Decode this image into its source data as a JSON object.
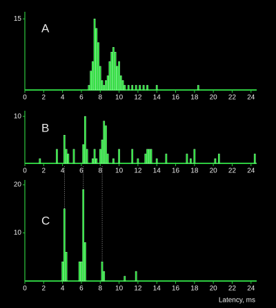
{
  "chart_data": [
    {
      "type": "bar",
      "title": "A",
      "color": "#22dd33",
      "x": [
        6.8,
        7.0,
        7.2,
        7.4,
        7.6,
        7.8,
        8.0,
        8.2,
        8.4,
        8.6,
        8.8,
        9.0,
        9.2,
        9.4,
        9.6,
        9.8,
        10.0,
        10.2,
        10.4,
        10.6,
        11.0,
        11.4,
        11.8,
        12.2,
        12.6,
        13.0,
        14.0,
        18.4
      ],
      "values": [
        1,
        4,
        6,
        15,
        13,
        10,
        5,
        2,
        1,
        2,
        3,
        6,
        8,
        9,
        8,
        5,
        6,
        3,
        2,
        1,
        1,
        1,
        1,
        1,
        1,
        1,
        1,
        1
      ],
      "xlim": [
        0,
        24.6
      ],
      "xticks": [
        0,
        2,
        4,
        6,
        8,
        10,
        12,
        14,
        16,
        18,
        20,
        22,
        24
      ],
      "ylim": [
        0,
        16.5
      ],
      "yticks": [
        15
      ]
    },
    {
      "type": "bar",
      "title": "B",
      "color": "#22dd33",
      "x": [
        1.6,
        3.4,
        4.2,
        4.4,
        4.6,
        5.2,
        6.2,
        6.4,
        6.6,
        7.2,
        7.4,
        7.6,
        8.0,
        8.2,
        8.4,
        8.6,
        8.8,
        9.4,
        10.0,
        11.4,
        12.0,
        12.8,
        13.0,
        13.2,
        13.4,
        14.0,
        15.0,
        17.2,
        17.6,
        18.0,
        20.2,
        20.6,
        24.4
      ],
      "values": [
        1,
        3,
        6,
        3,
        2,
        3,
        4,
        10,
        3,
        1,
        3,
        1,
        3,
        5,
        9,
        8,
        2,
        1,
        3,
        3,
        1,
        2,
        3,
        3,
        3,
        1,
        2,
        2,
        1,
        3,
        1,
        2,
        2
      ],
      "xlim": [
        0,
        24.6
      ],
      "xticks": [
        0,
        2,
        4,
        6,
        8,
        10,
        12,
        14,
        16,
        18,
        20,
        22,
        24
      ],
      "ylim": [
        0,
        11.2
      ],
      "yticks": [
        10
      ]
    },
    {
      "type": "bar",
      "title": "C",
      "color": "#22dd33",
      "x_label": "Latency, ms",
      "x": [
        4.0,
        4.2,
        4.4,
        5.8,
        6.0,
        6.2,
        6.4,
        8.2,
        8.4,
        10.6,
        11.8
      ],
      "values": [
        4,
        15,
        6,
        4,
        4,
        19,
        8,
        4,
        2,
        1,
        2
      ],
      "xlim": [
        0,
        24.6
      ],
      "xticks": [
        0,
        2,
        4,
        6,
        8,
        10,
        12,
        14,
        16,
        18,
        20,
        22,
        24
      ],
      "ylim": [
        0,
        21
      ],
      "yticks": [
        10,
        20
      ]
    }
  ]
}
